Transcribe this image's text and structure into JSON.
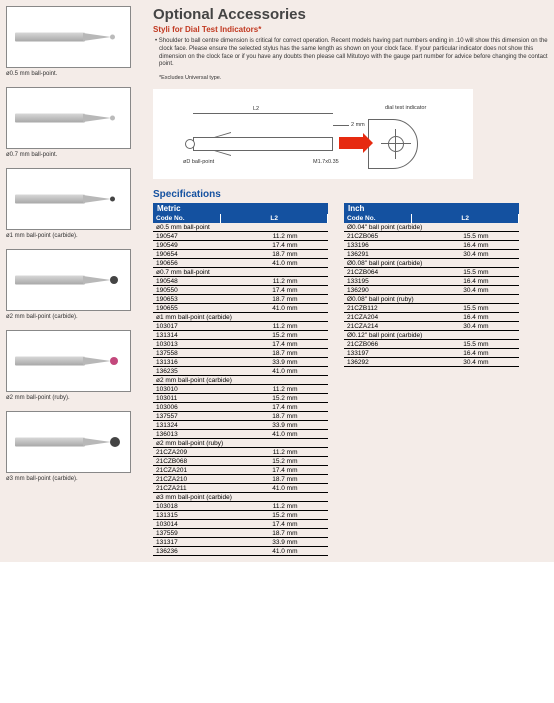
{
  "header": {
    "title": "Optional Accessories",
    "subtitle": "Styli for Dial Test Indicators*",
    "note": "• Shoulder to ball centre dimension is critical for correct operation. Recent models having part numbers ending in .10 will show this dimension on the clock face. Please ensure the selected stylus has the same length as shown on your clock face. If your particular indicator does not show this dimension on the clock face or if you have any doubts then please call Mitutoyo with the gauge part number for advice before changing the contact point.",
    "note_asterisk": "*Excludes Universal type."
  },
  "thumbs": [
    {
      "label": "ø0.5 mm ball-point."
    },
    {
      "label": "ø0.7 mm ball-point."
    },
    {
      "label": "ø1 mm ball-point (carbide)."
    },
    {
      "label": "ø2 mm ball-point (carbide)."
    },
    {
      "label": "ø2 mm ball-point (ruby)."
    },
    {
      "label": "ø3 mm ball-point (carbide)."
    }
  ],
  "diagram": {
    "l2_label": "L2",
    "tip_dim": "2 mm",
    "ball_label": "øD ball-point",
    "thread_label": "M1.7x0.35",
    "indicator_label": "dial test indicator"
  },
  "spec": {
    "title": "Specifications",
    "metric_label": "Metric",
    "inch_label": "Inch",
    "cols": {
      "code": "Code No.",
      "l2": "L2"
    },
    "metric_sections": [
      {
        "name": "ø0.5 mm ball-point",
        "rows": [
          {
            "code": "190547",
            "l2": "11.2 mm"
          },
          {
            "code": "190549",
            "l2": "17.4 mm"
          },
          {
            "code": "190654",
            "l2": "18.7 mm"
          },
          {
            "code": "190656",
            "l2": "41.0 mm"
          }
        ]
      },
      {
        "name": "ø0.7 mm ball-point",
        "rows": [
          {
            "code": "190548",
            "l2": "11.2 mm"
          },
          {
            "code": "190550",
            "l2": "17.4 mm"
          },
          {
            "code": "190653",
            "l2": "18.7 mm"
          },
          {
            "code": "190655",
            "l2": "41.0 mm"
          }
        ]
      },
      {
        "name": "ø1 mm ball-point (carbide)",
        "rows": [
          {
            "code": "103017",
            "l2": "11.2 mm"
          },
          {
            "code": "131314",
            "l2": "15.2 mm"
          },
          {
            "code": "103013",
            "l2": "17.4 mm"
          },
          {
            "code": "137558",
            "l2": "18.7 mm"
          },
          {
            "code": "131316",
            "l2": "33.9 mm"
          },
          {
            "code": "136235",
            "l2": "41.0 mm"
          }
        ]
      },
      {
        "name": "ø2 mm ball-point (carbide)",
        "rows": [
          {
            "code": "103010",
            "l2": "11.2 mm"
          },
          {
            "code": "103011",
            "l2": "15.2 mm"
          },
          {
            "code": "103006",
            "l2": "17.4 mm"
          },
          {
            "code": "137557",
            "l2": "18.7 mm"
          },
          {
            "code": "131324",
            "l2": "33.9 mm"
          },
          {
            "code": "136013",
            "l2": "41.0 mm"
          }
        ]
      },
      {
        "name": "ø2 mm ball-point (ruby)",
        "rows": [
          {
            "code": "21CZA209",
            "l2": "11.2 mm"
          },
          {
            "code": "21CZB068",
            "l2": "15.2 mm"
          },
          {
            "code": "21CZA201",
            "l2": "17.4 mm"
          },
          {
            "code": "21CZA210",
            "l2": "18.7 mm"
          },
          {
            "code": "21CZA211",
            "l2": "41.0 mm"
          }
        ]
      },
      {
        "name": "ø3 mm ball-point (carbide)",
        "rows": [
          {
            "code": "103018",
            "l2": "11.2 mm"
          },
          {
            "code": "131315",
            "l2": "15.2 mm"
          },
          {
            "code": "103014",
            "l2": "17.4 mm"
          },
          {
            "code": "137559",
            "l2": "18.7 mm"
          },
          {
            "code": "131317",
            "l2": "33.9 mm"
          },
          {
            "code": "136236",
            "l2": "41.0 mm"
          }
        ]
      }
    ],
    "inch_sections": [
      {
        "name": "Ø0.04\" ball point (carbide)",
        "rows": [
          {
            "code": "21CZB065",
            "l2": "15.5 mm"
          },
          {
            "code": "133196",
            "l2": "16.4 mm"
          },
          {
            "code": "136291",
            "l2": "30.4 mm"
          }
        ]
      },
      {
        "name": "Ø0.08\" ball point (carbide)",
        "rows": [
          {
            "code": "21CZB064",
            "l2": "15.5 mm"
          },
          {
            "code": "133195",
            "l2": "16.4 mm"
          },
          {
            "code": "136290",
            "l2": "30.4 mm"
          }
        ]
      },
      {
        "name": "Ø0.08\" ball point (ruby)",
        "rows": [
          {
            "code": "21CZB112",
            "l2": "15.5 mm"
          },
          {
            "code": "21CZA204",
            "l2": "16.4 mm"
          },
          {
            "code": "21CZA214",
            "l2": "30.4 mm"
          }
        ]
      },
      {
        "name": "Ø0.12\" ball point (carbide)",
        "rows": [
          {
            "code": "21CZB066",
            "l2": "15.5 mm"
          },
          {
            "code": "133197",
            "l2": "16.4 mm"
          },
          {
            "code": "136292",
            "l2": "30.4 mm"
          }
        ]
      }
    ]
  }
}
